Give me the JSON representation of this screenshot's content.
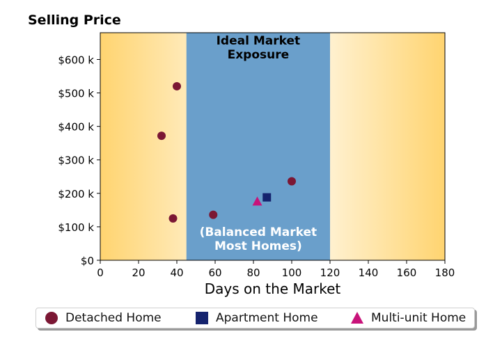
{
  "chart_data": {
    "type": "scatter",
    "title": "Selling Price",
    "xlabel": "Days on the Market",
    "ylabel": "",
    "xlim": [
      0,
      180
    ],
    "ylim": [
      0,
      680000
    ],
    "x_ticks": [
      0,
      20,
      40,
      60,
      80,
      100,
      120,
      140,
      160,
      180
    ],
    "x_tick_labels": [
      "0",
      "20",
      "40",
      "60",
      "80",
      "100",
      "120",
      "140",
      "160",
      "180"
    ],
    "y_ticks": [
      0,
      100000,
      200000,
      300000,
      400000,
      500000,
      600000
    ],
    "y_tick_labels": [
      "$0",
      "$100 k",
      "$200 k",
      "$300 k",
      "$400 k",
      "$500 k",
      "$600 k"
    ],
    "band": {
      "x_range": [
        45,
        120
      ],
      "color": "#6a9fcb",
      "title_lines": [
        "Ideal Market",
        "Exposure"
      ],
      "subtitle_lines": [
        "(Balanced Market",
        "Most Homes)"
      ]
    },
    "background_gradient": {
      "edge_color": "#ffd470",
      "center_color": "#ffffff"
    },
    "series": [
      {
        "name": "Detached Home",
        "marker": "circle",
        "color": "#7b1734",
        "points": [
          [
            32,
            372000
          ],
          [
            38,
            125000
          ],
          [
            40,
            520000
          ],
          [
            59,
            136000
          ],
          [
            100,
            236000
          ]
        ]
      },
      {
        "name": "Apartment Home",
        "marker": "square",
        "color": "#15236e",
        "points": [
          [
            87,
            188000
          ]
        ]
      },
      {
        "name": "Multi-unit Home",
        "marker": "triangle",
        "color": "#c8137a",
        "points": [
          [
            82,
            176000
          ]
        ]
      }
    ],
    "grid": false,
    "legend_position": "bottom"
  }
}
